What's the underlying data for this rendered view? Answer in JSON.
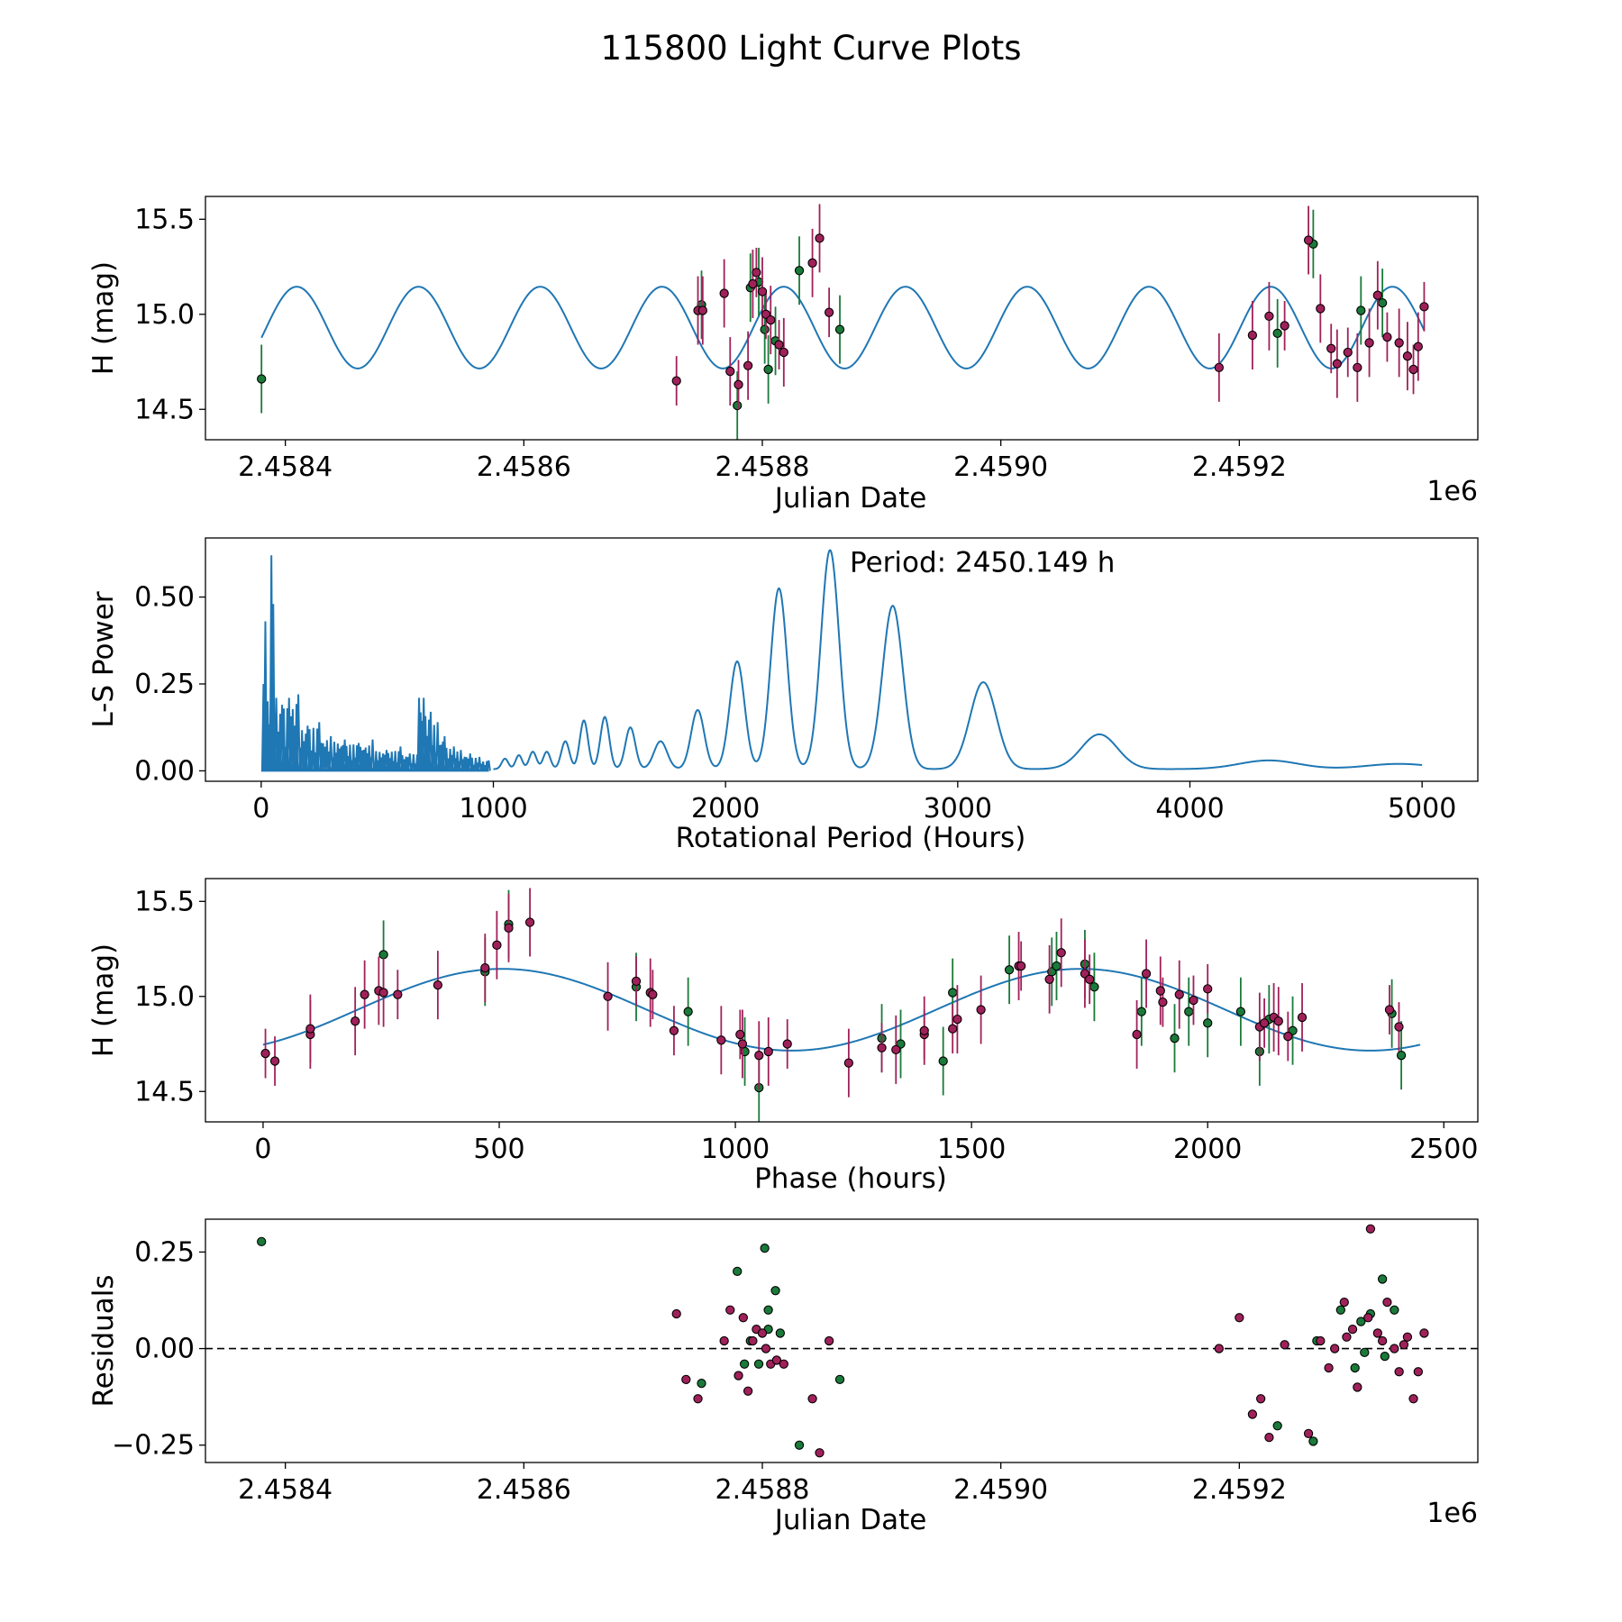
{
  "figure": {
    "title": "115800 Light Curve Plots"
  },
  "colors": {
    "fit": "#1f77b4",
    "series_a": "#a0215a",
    "series_b": "#1a7a3a",
    "marker_edge": "#000000"
  },
  "chart_data": [
    {
      "type": "scatter",
      "id": "lightcurve",
      "title": "",
      "xlabel": "Julian Date",
      "ylabel": "H (mag)",
      "x_offset_label": "1e6",
      "xlim": [
        2458333,
        2459400
      ],
      "ylim": [
        14.34,
        15.62
      ],
      "xticks": [
        2458400,
        2458600,
        2458800,
        2459000,
        2459200
      ],
      "xtick_labels": [
        "2.4584",
        "2.4586",
        "2.4588",
        "2.4590",
        "2.4592"
      ],
      "yticks": [
        14.5,
        15.0,
        15.5
      ],
      "ytick_labels": [
        "14.5",
        "15.0",
        "15.5"
      ],
      "fit": {
        "mean": 14.93,
        "amplitude": 0.215,
        "period_days": 102.09,
        "phase_deg": 0,
        "x_start": 2458380,
        "x_end": 2459355
      },
      "series": [
        {
          "name": "green",
          "color": "#1a7a3a",
          "x": [
            2458380,
            2458749,
            2458779,
            2458790,
            2458797,
            2458802,
            2458805,
            2458811,
            2458831,
            2458865,
            2459232,
            2459262,
            2459302,
            2459320
          ],
          "y": [
            14.66,
            15.05,
            14.52,
            15.14,
            15.17,
            14.92,
            14.71,
            14.86,
            15.23,
            14.92,
            14.9,
            15.37,
            15.02,
            15.06
          ],
          "yerr": [
            0.18,
            0.18,
            0.18,
            0.18,
            0.18,
            0.18,
            0.18,
            0.18,
            0.18,
            0.18,
            0.18,
            0.18,
            0.18,
            0.18
          ]
        },
        {
          "name": "purple",
          "color": "#a0215a",
          "x": [
            2458728,
            2458746,
            2458750,
            2458768,
            2458773,
            2458780,
            2458788,
            2458792,
            2458795,
            2458800,
            2458803,
            2458807,
            2458814,
            2458818,
            2458842,
            2458848,
            2458856,
            2459183,
            2459211,
            2459225,
            2459238,
            2459258,
            2459268,
            2459277,
            2459282,
            2459291,
            2459299,
            2459309,
            2459316,
            2459324,
            2459334,
            2459341,
            2459346,
            2459350,
            2459355
          ],
          "y": [
            14.65,
            15.02,
            15.02,
            15.11,
            14.7,
            14.63,
            14.73,
            15.16,
            15.22,
            15.12,
            15.0,
            14.97,
            14.84,
            14.8,
            15.27,
            15.4,
            15.01,
            14.72,
            14.89,
            14.99,
            14.94,
            15.39,
            15.03,
            14.82,
            14.74,
            14.8,
            14.72,
            14.85,
            15.1,
            14.88,
            14.85,
            14.78,
            14.71,
            14.83,
            15.04
          ],
          "yerr": [
            0.13,
            0.18,
            0.18,
            0.18,
            0.18,
            0.13,
            0.18,
            0.18,
            0.13,
            0.18,
            0.13,
            0.18,
            0.13,
            0.18,
            0.18,
            0.18,
            0.13,
            0.18,
            0.18,
            0.18,
            0.13,
            0.18,
            0.18,
            0.13,
            0.18,
            0.13,
            0.18,
            0.18,
            0.18,
            0.13,
            0.18,
            0.18,
            0.13,
            0.18,
            0.13
          ]
        }
      ]
    },
    {
      "type": "line",
      "id": "periodogram",
      "title": "",
      "xlabel": "Rotational Period (Hours)",
      "ylabel": "L-S Power",
      "xlim": [
        -240,
        5240
      ],
      "ylim": [
        -0.03,
        0.67
      ],
      "xticks": [
        0,
        1000,
        2000,
        3000,
        4000,
        5000
      ],
      "xtick_labels": [
        "0",
        "1000",
        "2000",
        "3000",
        "4000",
        "5000"
      ],
      "yticks": [
        0.0,
        0.25,
        0.5
      ],
      "ytick_labels": [
        "0.00",
        "0.25",
        "0.50"
      ],
      "annotation": "Period: 2450.149 h",
      "peaks": [
        {
          "x": 1050,
          "y": 0.03,
          "w": 20
        },
        {
          "x": 1110,
          "y": 0.04,
          "w": 20
        },
        {
          "x": 1170,
          "y": 0.05,
          "w": 22
        },
        {
          "x": 1230,
          "y": 0.05,
          "w": 22
        },
        {
          "x": 1310,
          "y": 0.08,
          "w": 25
        },
        {
          "x": 1390,
          "y": 0.14,
          "w": 25
        },
        {
          "x": 1480,
          "y": 0.15,
          "w": 27
        },
        {
          "x": 1590,
          "y": 0.12,
          "w": 30
        },
        {
          "x": 1720,
          "y": 0.08,
          "w": 40
        },
        {
          "x": 1880,
          "y": 0.17,
          "w": 40
        },
        {
          "x": 2050,
          "y": 0.31,
          "w": 45
        },
        {
          "x": 2230,
          "y": 0.52,
          "w": 50
        },
        {
          "x": 2450,
          "y": 0.63,
          "w": 55
        },
        {
          "x": 2720,
          "y": 0.47,
          "w": 62
        },
        {
          "x": 3110,
          "y": 0.25,
          "w": 80
        },
        {
          "x": 3610,
          "y": 0.1,
          "w": 110
        },
        {
          "x": 4340,
          "y": 0.025,
          "w": 180
        },
        {
          "x": 4900,
          "y": 0.015,
          "w": 200
        }
      ],
      "short_period_spikes": [
        {
          "x": 10,
          "y": 0.25
        },
        {
          "x": 18,
          "y": 0.43
        },
        {
          "x": 28,
          "y": 0.2
        },
        {
          "x": 44,
          "y": 0.62
        },
        {
          "x": 52,
          "y": 0.48
        },
        {
          "x": 65,
          "y": 0.21
        },
        {
          "x": 90,
          "y": 0.19
        },
        {
          "x": 120,
          "y": 0.21
        },
        {
          "x": 160,
          "y": 0.22
        },
        {
          "x": 200,
          "y": 0.13
        },
        {
          "x": 250,
          "y": 0.14
        },
        {
          "x": 300,
          "y": 0.1
        },
        {
          "x": 360,
          "y": 0.09
        },
        {
          "x": 420,
          "y": 0.08
        },
        {
          "x": 480,
          "y": 0.09
        },
        {
          "x": 540,
          "y": 0.06
        },
        {
          "x": 600,
          "y": 0.07
        },
        {
          "x": 640,
          "y": 0.05
        },
        {
          "x": 680,
          "y": 0.21
        },
        {
          "x": 700,
          "y": 0.21
        },
        {
          "x": 730,
          "y": 0.17
        },
        {
          "x": 760,
          "y": 0.14
        },
        {
          "x": 790,
          "y": 0.1
        },
        {
          "x": 830,
          "y": 0.07
        },
        {
          "x": 860,
          "y": 0.06
        },
        {
          "x": 900,
          "y": 0.05
        },
        {
          "x": 940,
          "y": 0.04
        },
        {
          "x": 980,
          "y": 0.03
        }
      ]
    },
    {
      "type": "scatter",
      "id": "phased",
      "title": "",
      "xlabel": "Phase (hours)",
      "ylabel": "H (mag)",
      "xlim": [
        -122,
        2572
      ],
      "ylim": [
        14.34,
        15.62
      ],
      "xticks": [
        0,
        500,
        1000,
        1500,
        2000,
        2500
      ],
      "xtick_labels": [
        "0",
        "500",
        "1000",
        "1500",
        "2000",
        "2500"
      ],
      "yticks": [
        14.5,
        15.0,
        15.5
      ],
      "ytick_labels": [
        "14.5",
        "15.0",
        "15.5"
      ],
      "fit": {
        "mean": 14.93,
        "amplitude": 0.215,
        "period_hours": 1225.07,
        "phase_shift_hours": 200,
        "x_start": 0,
        "x_end": 2450
      },
      "series": [
        {
          "name": "green",
          "color": "#1a7a3a",
          "x": [
            255,
            470,
            520,
            790,
            900,
            1020,
            1050,
            1310,
            1350,
            1440,
            1460,
            1580,
            1670,
            1680,
            1740,
            1760,
            1860,
            1930,
            1960,
            2000,
            2070,
            2110,
            2130,
            2180,
            2390,
            2410
          ],
          "y": [
            15.22,
            15.13,
            15.38,
            15.05,
            14.92,
            14.71,
            14.52,
            14.78,
            14.75,
            14.66,
            15.02,
            15.14,
            15.13,
            15.16,
            15.17,
            15.05,
            14.92,
            14.78,
            14.92,
            14.86,
            14.92,
            14.71,
            14.88,
            14.82,
            14.91,
            14.69
          ],
          "yerr": [
            0.18,
            0.18,
            0.18,
            0.18,
            0.18,
            0.18,
            0.18,
            0.18,
            0.18,
            0.18,
            0.18,
            0.18,
            0.18,
            0.18,
            0.18,
            0.18,
            0.18,
            0.18,
            0.18,
            0.18,
            0.18,
            0.18,
            0.18,
            0.18,
            0.18,
            0.18
          ]
        },
        {
          "name": "purple",
          "color": "#a0215a",
          "x": [
            5,
            25,
            100,
            100,
            195,
            215,
            245,
            255,
            285,
            370,
            470,
            495,
            520,
            565,
            730,
            790,
            820,
            825,
            870,
            970,
            1010,
            1015,
            1050,
            1070,
            1110,
            1240,
            1310,
            1340,
            1400,
            1400,
            1460,
            1470,
            1520,
            1600,
            1605,
            1665,
            1690,
            1740,
            1750,
            1850,
            1870,
            1900,
            1905,
            1940,
            1970,
            2000,
            2110,
            2120,
            2140,
            2150,
            2170,
            2200,
            2385,
            2405
          ],
          "y": [
            14.7,
            14.66,
            14.8,
            14.83,
            14.87,
            15.01,
            15.03,
            15.02,
            15.01,
            15.06,
            15.15,
            15.27,
            15.36,
            15.39,
            15.0,
            15.08,
            15.02,
            15.01,
            14.82,
            14.77,
            14.8,
            14.75,
            14.69,
            14.71,
            14.75,
            14.65,
            14.73,
            14.72,
            14.8,
            14.82,
            14.83,
            14.88,
            14.93,
            15.16,
            15.16,
            15.09,
            15.23,
            15.12,
            15.09,
            14.8,
            15.12,
            15.03,
            14.97,
            15.01,
            14.98,
            15.04,
            14.84,
            14.86,
            14.89,
            14.87,
            14.79,
            14.89,
            14.93,
            14.84
          ],
          "yerr": [
            0.13,
            0.13,
            0.18,
            0.18,
            0.18,
            0.18,
            0.18,
            0.18,
            0.13,
            0.18,
            0.18,
            0.18,
            0.18,
            0.18,
            0.18,
            0.13,
            0.18,
            0.13,
            0.13,
            0.18,
            0.13,
            0.18,
            0.18,
            0.18,
            0.13,
            0.18,
            0.13,
            0.18,
            0.13,
            0.18,
            0.13,
            0.18,
            0.18,
            0.18,
            0.13,
            0.18,
            0.18,
            0.18,
            0.13,
            0.18,
            0.18,
            0.18,
            0.13,
            0.18,
            0.13,
            0.13,
            0.18,
            0.13,
            0.18,
            0.18,
            0.13,
            0.18,
            0.13,
            0.13
          ]
        }
      ]
    },
    {
      "type": "scatter",
      "id": "residuals",
      "title": "",
      "xlabel": "Julian Date",
      "ylabel": "Residuals",
      "x_offset_label": "1e6",
      "xlim": [
        2458333,
        2459400
      ],
      "ylim": [
        -0.295,
        0.335
      ],
      "xticks": [
        2458400,
        2458600,
        2458800,
        2459000,
        2459200
      ],
      "xtick_labels": [
        "2.4584",
        "2.4586",
        "2.4588",
        "2.4590",
        "2.4592"
      ],
      "yticks": [
        -0.25,
        0.0,
        0.25
      ],
      "ytick_labels": [
        "−0.25",
        "0.00",
        "0.25"
      ],
      "zero_line": true,
      "series": [
        {
          "name": "green",
          "color": "#1a7a3a",
          "x": [
            2458380,
            2458749,
            2458779,
            2458790,
            2458797,
            2458802,
            2458805,
            2458811,
            2458831,
            2458865,
            2459232,
            2459262,
            2459302,
            2459320,
            2459265,
            2459285,
            2459297,
            2459310,
            2459322,
            2459305,
            2459330,
            2458805,
            2458815,
            2458785
          ],
          "y": [
            0.277,
            -0.09,
            0.2,
            0.02,
            -0.04,
            0.26,
            0.1,
            0.15,
            -0.25,
            -0.08,
            -0.2,
            -0.24,
            0.07,
            0.18,
            0.02,
            0.1,
            -0.05,
            0.09,
            -0.02,
            -0.01,
            0.1,
            0.05,
            0.04,
            -0.04
          ],
          "yerr": []
        },
        {
          "name": "purple",
          "color": "#a0215a",
          "x": [
            2458728,
            2458736,
            2458746,
            2458768,
            2458773,
            2458780,
            2458784,
            2458788,
            2458792,
            2458795,
            2458800,
            2458803,
            2458807,
            2458812,
            2458818,
            2458842,
            2458848,
            2458856,
            2459183,
            2459200,
            2459211,
            2459218,
            2459225,
            2459238,
            2459258,
            2459268,
            2459275,
            2459280,
            2459288,
            2459295,
            2459299,
            2459310,
            2459316,
            2459324,
            2459334,
            2459341,
            2459346,
            2459350,
            2459355,
            2459290,
            2459308,
            2459320,
            2459330,
            2459338
          ],
          "y": [
            0.09,
            -0.08,
            -0.13,
            0.02,
            0.1,
            -0.07,
            0.08,
            -0.11,
            0.02,
            0.05,
            0.04,
            0.0,
            -0.04,
            -0.03,
            -0.04,
            -0.13,
            -0.27,
            0.02,
            0.0,
            0.08,
            -0.17,
            -0.13,
            -0.23,
            0.01,
            -0.22,
            0.02,
            -0.05,
            0.0,
            0.12,
            0.05,
            -0.1,
            0.31,
            0.04,
            0.12,
            -0.06,
            0.03,
            -0.13,
            -0.06,
            0.04,
            0.03,
            0.08,
            0.02,
            0.0,
            0.01
          ],
          "yerr": []
        }
      ]
    }
  ]
}
